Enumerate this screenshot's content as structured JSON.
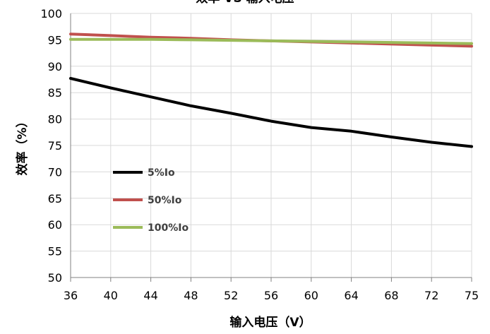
{
  "chart_data": {
    "type": "line",
    "title": "效率 VS 输入电压",
    "xlabel": "输入电压（V）",
    "ylabel": "效率（%）",
    "x": [
      36,
      40,
      44,
      48,
      52,
      56,
      60,
      64,
      68,
      72,
      75
    ],
    "x_tick_labels": [
      "36",
      "40",
      "44",
      "48",
      "52",
      "56",
      "60",
      "64",
      "68",
      "72",
      "75"
    ],
    "y_tick_labels": [
      "50",
      "55",
      "60",
      "65",
      "70",
      "75",
      "80",
      "85",
      "90",
      "95",
      "100"
    ],
    "xlim": [
      36,
      75
    ],
    "ylim": [
      50,
      100
    ],
    "grid": true,
    "legend_position": "left-middle",
    "series": [
      {
        "name": "5%Io",
        "color": "#000000",
        "values": [
          87.7,
          85.9,
          84.2,
          82.5,
          81.1,
          79.6,
          78.4,
          77.7,
          76.6,
          75.6,
          74.8
        ]
      },
      {
        "name": "50%Io",
        "color": "#c0504d",
        "values": [
          96.1,
          95.8,
          95.5,
          95.3,
          95.0,
          94.8,
          94.6,
          94.4,
          94.2,
          94.0,
          93.8
        ]
      },
      {
        "name": "100%Io",
        "color": "#9bbb59",
        "values": [
          95.1,
          95.1,
          95.1,
          95.0,
          94.9,
          94.8,
          94.7,
          94.6,
          94.5,
          94.4,
          94.3
        ]
      }
    ]
  }
}
